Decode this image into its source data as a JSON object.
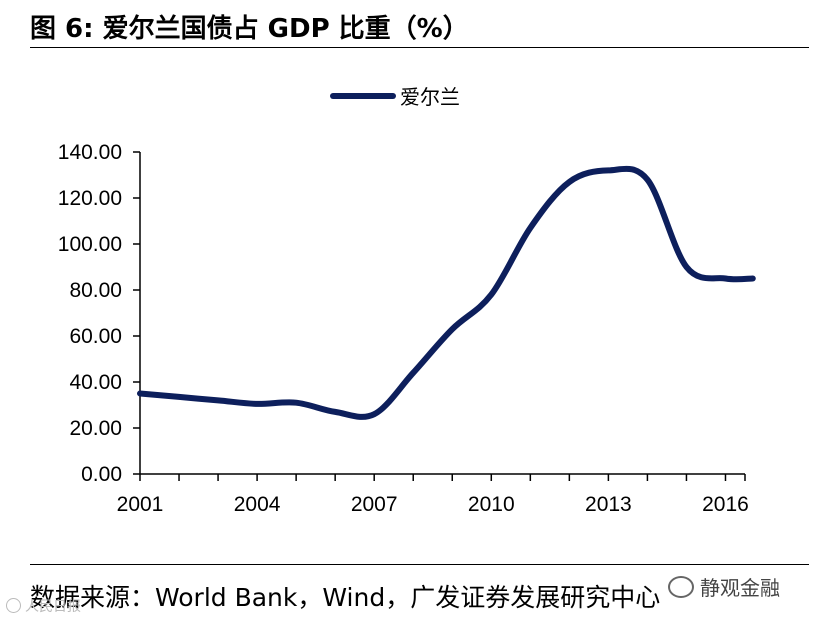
{
  "figure_title": "图 6:  爱尔兰国债占 GDP 比重（%）",
  "source_text": "数据来源：World Bank，Wind，广发证券发展研究中心",
  "watermark": "静观金融",
  "stamp": "人民日报",
  "colors": {
    "series": "#0d1f5c",
    "axis": "#000000",
    "text": "#000000"
  },
  "chart_data": {
    "type": "line",
    "title": "",
    "xlabel": "",
    "ylabel": "",
    "xlim": [
      2001,
      2016.5
    ],
    "ylim": [
      0,
      140
    ],
    "x_ticks": [
      2001,
      2004,
      2007,
      2010,
      2013,
      2016
    ],
    "x_tick_labels": [
      "2001",
      "2004",
      "2007",
      "2010",
      "2013",
      "2016"
    ],
    "y_ticks": [
      0,
      20,
      40,
      60,
      80,
      100,
      120,
      140
    ],
    "y_tick_labels": [
      "0.00",
      "20.00",
      "40.00",
      "60.00",
      "80.00",
      "100.00",
      "120.00",
      "140.00"
    ],
    "legend_position": "top-center",
    "series": [
      {
        "name": "爱尔兰",
        "x": [
          2001,
          2002,
          2003,
          2004,
          2005,
          2006,
          2007,
          2008,
          2009,
          2010,
          2011,
          2012,
          2013,
          2014,
          2015,
          2016,
          2016.7
        ],
        "values": [
          35,
          33.5,
          32,
          30.5,
          31,
          27,
          26,
          44,
          63,
          78,
          107,
          127,
          132,
          128,
          90,
          85,
          85
        ]
      }
    ]
  }
}
